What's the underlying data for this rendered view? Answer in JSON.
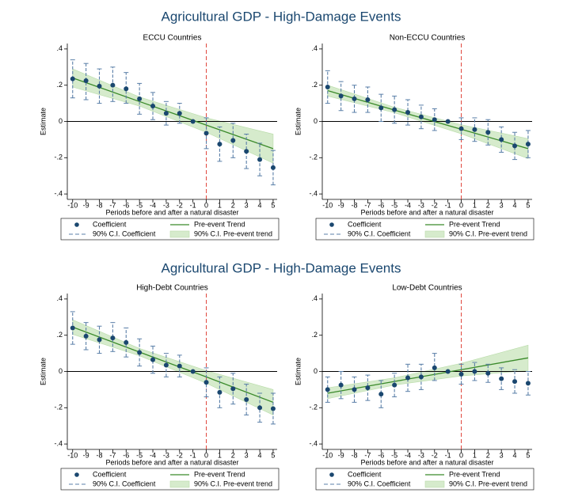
{
  "figure_titles": [
    "Agricultural GDP - High-Damage Events",
    "Agricultural GDP - High-Damage Events"
  ],
  "chart_data": [
    {
      "type": "errorbar",
      "title": "ECCU Countries",
      "xlabel": "Periods before and after a natural disaster",
      "ylabel": "Estimate",
      "x": [
        -10,
        -9,
        -8,
        -7,
        -6,
        -5,
        -4,
        -3,
        -2,
        -1,
        0,
        1,
        2,
        3,
        4,
        5
      ],
      "xlim": [
        -10.4,
        5.3
      ],
      "ylim": [
        -0.43,
        0.43
      ],
      "xticks": [
        -10,
        -9,
        -8,
        -7,
        -6,
        -5,
        -4,
        -3,
        -2,
        -1,
        0,
        1,
        2,
        3,
        4,
        5
      ],
      "yticks": [
        {
          "value": -0.4,
          "label": "-.4"
        },
        {
          "value": -0.2,
          "label": "-.2"
        },
        0,
        {
          "value": 0.2,
          "label": ".2"
        },
        {
          "value": 0.4,
          "label": ".4"
        }
      ],
      "hline": 0,
      "vline": 0,
      "series": [
        {
          "name": "Coefficient",
          "color": "#1a476f",
          "values": [
            0.235,
            0.225,
            0.195,
            0.2,
            0.18,
            0.125,
            0.085,
            0.045,
            0.045,
            0,
            -0.065,
            -0.125,
            -0.105,
            -0.165,
            -0.21,
            -0.255
          ]
        },
        {
          "name": "Pre-event Trend",
          "color": "#3a8a2a",
          "x": [
            -10,
            -5,
            0,
            5
          ],
          "values": [
            0.24,
            0.11,
            -0.02,
            -0.15
          ]
        },
        {
          "name": "90% C.I. Coefficient",
          "color": "#5a7fa8",
          "lower": [
            0.13,
            0.12,
            0.1,
            0.11,
            0.1,
            0.04,
            0.01,
            -0.02,
            -0.01,
            null,
            -0.15,
            -0.22,
            -0.2,
            -0.26,
            -0.3,
            -0.35
          ],
          "upper": [
            0.34,
            0.32,
            0.29,
            0.3,
            0.27,
            0.21,
            0.16,
            0.11,
            0.1,
            null,
            0.02,
            -0.03,
            -0.01,
            -0.07,
            -0.12,
            -0.16
          ]
        },
        {
          "name": "90% C.I. Pre-event trend",
          "color": "#d6ebcc",
          "x": [
            -10,
            -5,
            0,
            5
          ],
          "lower": [
            0.19,
            0.085,
            -0.06,
            -0.23
          ],
          "upper": [
            0.29,
            0.135,
            0.02,
            -0.07
          ]
        }
      ]
    },
    {
      "type": "errorbar",
      "title": "Non-ECCU Countries",
      "xlabel": "Periods before and after a natural disaster",
      "ylabel": "Estimate",
      "x": [
        -10,
        -9,
        -8,
        -7,
        -6,
        -5,
        -4,
        -3,
        -2,
        -1,
        0,
        1,
        2,
        3,
        4,
        5
      ],
      "xlim": [
        -10.4,
        5.3
      ],
      "ylim": [
        -0.43,
        0.43
      ],
      "xticks": [
        -10,
        -9,
        -8,
        -7,
        -6,
        -5,
        -4,
        -3,
        -2,
        -1,
        0,
        1,
        2,
        3,
        4,
        5
      ],
      "yticks": [
        {
          "value": -0.4,
          "label": "-.4"
        },
        {
          "value": -0.2,
          "label": "-.2"
        },
        0,
        {
          "value": 0.2,
          "label": ".2"
        },
        {
          "value": 0.4,
          "label": ".4"
        }
      ],
      "hline": 0,
      "vline": 0,
      "series": [
        {
          "name": "Coefficient",
          "color": "#1a476f",
          "values": [
            0.19,
            0.14,
            0.125,
            0.12,
            0.075,
            0.065,
            0.05,
            0.025,
            0.01,
            0,
            -0.04,
            -0.045,
            -0.06,
            -0.1,
            -0.135,
            -0.125
          ]
        },
        {
          "name": "Pre-event Trend",
          "color": "#3a8a2a",
          "x": [
            -10,
            -5,
            0,
            5
          ],
          "values": [
            0.17,
            0.063,
            -0.043,
            -0.15
          ]
        },
        {
          "name": "90% C.I. Coefficient",
          "color": "#5a7fa8",
          "lower": [
            0.1,
            0.06,
            0.05,
            0.05,
            0,
            -0.01,
            -0.02,
            -0.04,
            -0.05,
            null,
            -0.1,
            -0.11,
            -0.13,
            -0.17,
            -0.21,
            -0.2
          ],
          "upper": [
            0.28,
            0.22,
            0.2,
            0.19,
            0.15,
            0.14,
            0.12,
            0.09,
            0.07,
            null,
            0.02,
            0.02,
            0.01,
            -0.03,
            -0.06,
            -0.05
          ]
        },
        {
          "name": "90% C.I. Pre-event trend",
          "color": "#d6ebcc",
          "x": [
            -10,
            -5,
            0,
            5
          ],
          "lower": [
            0.14,
            0.048,
            -0.068,
            -0.205
          ],
          "upper": [
            0.2,
            0.078,
            -0.018,
            -0.095
          ]
        }
      ]
    },
    {
      "type": "errorbar",
      "title": "High-Debt Countries",
      "xlabel": "Periods before and after a natural disaster",
      "ylabel": "Estimate",
      "x": [
        -10,
        -9,
        -8,
        -7,
        -6,
        -5,
        -4,
        -3,
        -2,
        -1,
        0,
        1,
        2,
        3,
        4,
        5
      ],
      "xlim": [
        -10.4,
        5.3
      ],
      "ylim": [
        -0.43,
        0.43
      ],
      "xticks": [
        -10,
        -9,
        -8,
        -7,
        -6,
        -5,
        -4,
        -3,
        -2,
        -1,
        0,
        1,
        2,
        3,
        4,
        5
      ],
      "yticks": [
        {
          "value": -0.4,
          "label": "-.4"
        },
        {
          "value": -0.2,
          "label": "-.2"
        },
        0,
        {
          "value": 0.2,
          "label": ".2"
        },
        {
          "value": 0.4,
          "label": ".4"
        }
      ],
      "hline": 0,
      "vline": 0,
      "series": [
        {
          "name": "Coefficient",
          "color": "#1a476f",
          "values": [
            0.24,
            0.195,
            0.175,
            0.185,
            0.16,
            0.105,
            0.065,
            0.035,
            0.03,
            0,
            -0.06,
            -0.115,
            -0.095,
            -0.155,
            -0.2,
            -0.205
          ]
        },
        {
          "name": "Pre-event Trend",
          "color": "#3a8a2a",
          "x": [
            -10,
            -5,
            0,
            5
          ],
          "values": [
            0.245,
            0.107,
            -0.03,
            -0.17
          ]
        },
        {
          "name": "90% C.I. Coefficient",
          "color": "#5a7fa8",
          "lower": [
            0.15,
            0.12,
            0.1,
            0.11,
            0.08,
            0.03,
            -0.01,
            -0.03,
            -0.03,
            null,
            -0.14,
            -0.2,
            -0.18,
            -0.24,
            -0.28,
            -0.29
          ],
          "upper": [
            0.33,
            0.27,
            0.25,
            0.27,
            0.24,
            0.18,
            0.14,
            0.1,
            0.09,
            null,
            0.02,
            -0.03,
            -0.01,
            -0.07,
            -0.12,
            -0.12
          ]
        },
        {
          "name": "90% C.I. Pre-event trend",
          "color": "#d6ebcc",
          "x": [
            -10,
            -5,
            0,
            5
          ],
          "lower": [
            0.205,
            0.087,
            -0.065,
            -0.24
          ],
          "upper": [
            0.285,
            0.127,
            0.005,
            -0.1
          ]
        }
      ]
    },
    {
      "type": "errorbar",
      "title": "Low-Debt Countries",
      "xlabel": "Periods before and after a natural disaster",
      "ylabel": "Estimate",
      "x": [
        -10,
        -9,
        -8,
        -7,
        -6,
        -5,
        -4,
        -3,
        -2,
        -1,
        0,
        1,
        2,
        3,
        4,
        5
      ],
      "xlim": [
        -10.4,
        5.3
      ],
      "ylim": [
        -0.43,
        0.43
      ],
      "xticks": [
        -10,
        -9,
        -8,
        -7,
        -6,
        -5,
        -4,
        -3,
        -2,
        -1,
        0,
        1,
        2,
        3,
        4,
        5
      ],
      "yticks": [
        {
          "value": -0.4,
          "label": "-.4"
        },
        {
          "value": -0.2,
          "label": "-.2"
        },
        0,
        {
          "value": 0.2,
          "label": ".2"
        },
        {
          "value": 0.4,
          "label": ".4"
        }
      ],
      "hline": 0,
      "vline": 0,
      "series": [
        {
          "name": "Coefficient",
          "color": "#1a476f",
          "values": [
            -0.1,
            -0.075,
            -0.1,
            -0.09,
            -0.125,
            -0.075,
            -0.035,
            -0.03,
            0.02,
            0,
            -0.015,
            0,
            -0.01,
            -0.04,
            -0.055,
            -0.065
          ]
        },
        {
          "name": "Pre-event Trend",
          "color": "#3a8a2a",
          "x": [
            -10,
            -5,
            0,
            5
          ],
          "values": [
            -0.12,
            -0.055,
            0.01,
            0.075
          ]
        },
        {
          "name": "90% C.I. Coefficient",
          "color": "#5a7fa8",
          "lower": [
            -0.17,
            -0.15,
            -0.17,
            -0.16,
            -0.2,
            -0.14,
            -0.11,
            -0.1,
            -0.05,
            null,
            -0.07,
            -0.05,
            -0.06,
            -0.1,
            -0.12,
            -0.13
          ],
          "upper": [
            -0.03,
            0,
            -0.03,
            -0.02,
            -0.05,
            -0.01,
            0.04,
            0.04,
            0.1,
            null,
            0.04,
            0.05,
            0.04,
            0.02,
            0.01,
            0
          ]
        },
        {
          "name": "90% C.I. Pre-event trend",
          "color": "#d6ebcc",
          "x": [
            -10,
            -5,
            0,
            5
          ],
          "lower": [
            -0.15,
            -0.075,
            -0.025,
            0.005
          ],
          "upper": [
            -0.09,
            -0.035,
            0.045,
            0.145
          ]
        }
      ]
    }
  ]
}
